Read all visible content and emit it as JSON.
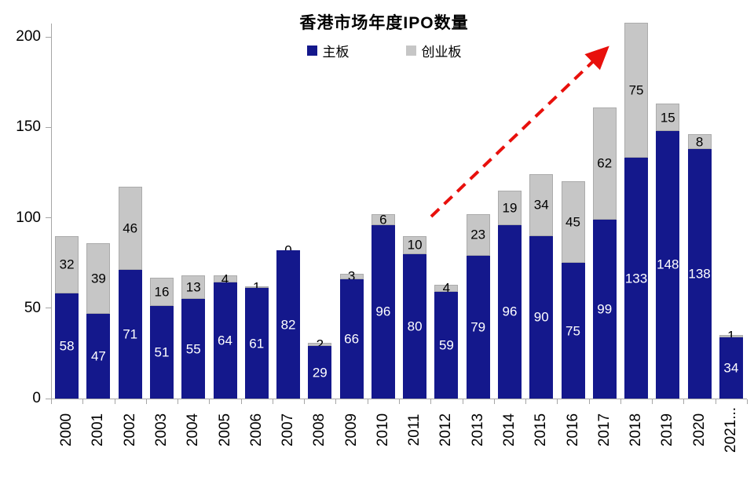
{
  "chart_data": {
    "type": "bar",
    "stacked": true,
    "title": "香港市场年度IPO数量",
    "categories": [
      "2000",
      "2001",
      "2002",
      "2003",
      "2004",
      "2005",
      "2006",
      "2007",
      "2008",
      "2009",
      "2010",
      "2011",
      "2012",
      "2013",
      "2014",
      "2015",
      "2016",
      "2017",
      "2018",
      "2019",
      "2020",
      "2021..."
    ],
    "series": [
      {
        "name": "主板",
        "color": "#14188C",
        "label_color": "#FFFFFF",
        "values": [
          58,
          47,
          71,
          51,
          55,
          64,
          61,
          82,
          29,
          66,
          96,
          80,
          59,
          79,
          96,
          90,
          75,
          99,
          133,
          148,
          138,
          34
        ]
      },
      {
        "name": "创业板",
        "color": "#C6C6C6",
        "border_color": "#ABABAB",
        "label_color": "#000000",
        "values": [
          32,
          39,
          46,
          16,
          13,
          4,
          1,
          0,
          2,
          3,
          6,
          10,
          4,
          23,
          19,
          34,
          45,
          62,
          75,
          15,
          8,
          1
        ]
      }
    ],
    "ylim": [
      0,
      200
    ],
    "yticks": [
      0,
      50,
      100,
      150,
      200
    ],
    "xlabel": "",
    "ylabel": "",
    "grid": false,
    "legend_position": "top-center",
    "axis_color": "#A6A6A6",
    "annotation": {
      "type": "dashed-arrow",
      "color": "#E8100C",
      "description": "red dashed upward trend arrow from above 2011 bar to above 2017 bar"
    }
  }
}
